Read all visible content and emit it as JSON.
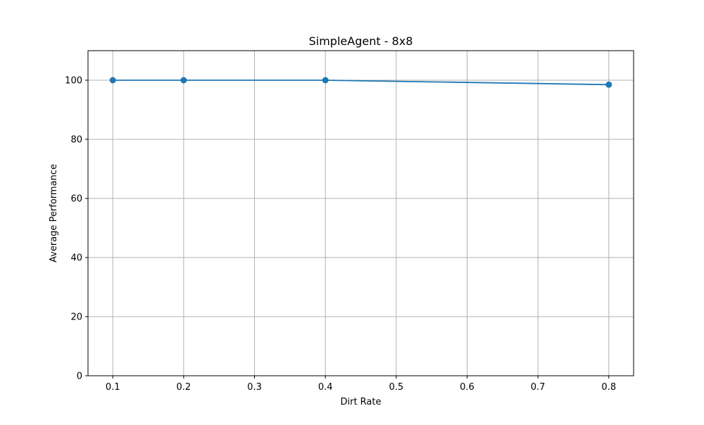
{
  "chart_data": {
    "type": "line",
    "title": "SimpleAgent - 8x8",
    "xlabel": "Dirt Rate",
    "ylabel": "Average Performance",
    "x": [
      0.1,
      0.2,
      0.4,
      0.8
    ],
    "series": [
      {
        "values": [
          100,
          100,
          100,
          98.5
        ],
        "color": "#1f77b4",
        "marker": "circle"
      }
    ],
    "xlim": [
      0.065,
      0.835
    ],
    "ylim": [
      0,
      110
    ],
    "xticks": [
      0.1,
      0.2,
      0.3,
      0.4,
      0.5,
      0.6,
      0.7,
      0.8
    ],
    "xtick_labels": [
      "0.1",
      "0.2",
      "0.3",
      "0.4",
      "0.5",
      "0.6",
      "0.7",
      "0.8"
    ],
    "yticks": [
      0,
      20,
      40,
      60,
      80,
      100
    ],
    "ytick_labels": [
      "0",
      "20",
      "40",
      "60",
      "80",
      "100"
    ],
    "grid": true,
    "legend": false
  }
}
